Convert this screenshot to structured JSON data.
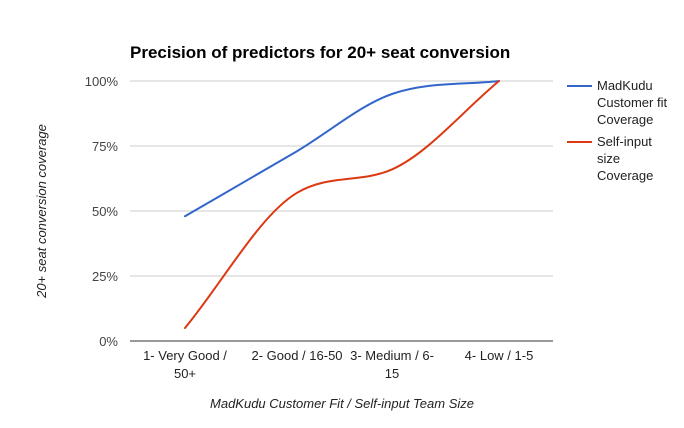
{
  "chart_data": {
    "type": "line",
    "title": "Precision of predictors for 20+ seat conversion",
    "xlabel": "MadKudu Customer Fit / Self-input Team Size",
    "ylabel": "20+ seat conversion coverage",
    "categories": [
      [
        "1- Very Good /",
        "50+"
      ],
      [
        "2- Good / 16-50"
      ],
      [
        "3- Medium / 6-",
        "15"
      ],
      [
        "4- Low / 1-5"
      ]
    ],
    "ylim": [
      0,
      100
    ],
    "y_ticks": [
      0,
      25,
      50,
      75,
      100
    ],
    "y_tick_labels": [
      "0%",
      "25%",
      "50%",
      "75%",
      "100%"
    ],
    "grid": true,
    "legend_position": "right",
    "smooth": true,
    "series": [
      {
        "name_lines": [
          "MadKudu",
          "Customer fit",
          "Coverage"
        ],
        "color": "#3366cc",
        "values": [
          48,
          73,
          95,
          100
        ]
      },
      {
        "name_lines": [
          "Self-input",
          "size",
          "Coverage"
        ],
        "color": "#dc3912",
        "values": [
          5,
          57,
          66,
          100
        ]
      }
    ]
  }
}
